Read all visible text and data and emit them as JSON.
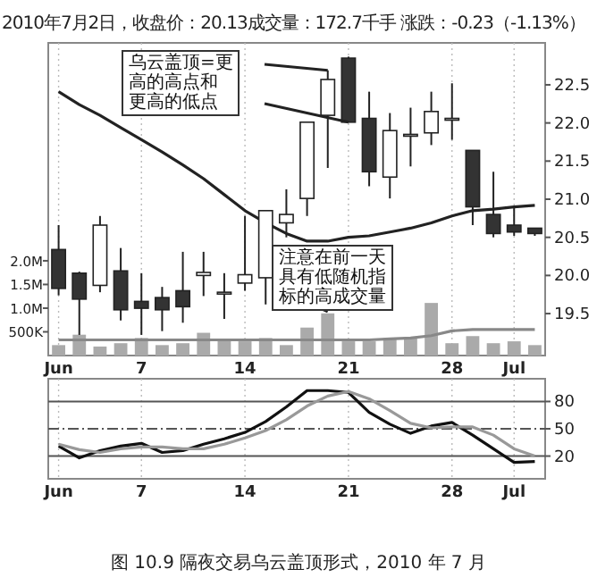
{
  "chart_data": [
    {
      "type": "candlestick",
      "title": "2010年7月2日，收盘价：20.13成交量：172.7千手 涨跌：-0.23（-1.13%）",
      "categories": [
        "Jun",
        null,
        null,
        null,
        "7",
        null,
        null,
        null,
        null,
        "14",
        null,
        null,
        null,
        null,
        "21",
        null,
        null,
        null,
        null,
        "28",
        null,
        null,
        "Jul",
        null
      ],
      "ohlc": [
        [
          20.34,
          20.66,
          19.74,
          19.83
        ],
        [
          20.03,
          20.05,
          19.22,
          19.69
        ],
        [
          19.87,
          20.78,
          19.78,
          20.66
        ],
        [
          20.06,
          20.36,
          19.41,
          19.55
        ],
        [
          19.66,
          20.03,
          19.22,
          19.57
        ],
        [
          19.71,
          19.85,
          19.27,
          19.55
        ],
        [
          19.8,
          20.31,
          19.38,
          19.59
        ],
        [
          20.0,
          20.31,
          19.73,
          20.04
        ],
        [
          19.78,
          20.03,
          19.43,
          19.78
        ],
        [
          19.9,
          20.78,
          19.8,
          20.01
        ],
        [
          19.97,
          20.85,
          19.62,
          20.85
        ],
        [
          20.69,
          21.13,
          20.5,
          20.8
        ],
        [
          21.01,
          22.01,
          20.78,
          22.01
        ],
        [
          22.1,
          22.69,
          21.41,
          22.57
        ],
        [
          22.85,
          22.87,
          22.01,
          22.01
        ],
        [
          22.06,
          22.41,
          21.17,
          21.36
        ],
        [
          21.29,
          22.13,
          21.01,
          21.9
        ],
        [
          21.85,
          22.2,
          21.43,
          21.85
        ],
        [
          21.87,
          22.41,
          21.71,
          22.15
        ],
        [
          22.06,
          22.52,
          21.78,
          22.06
        ],
        [
          21.64,
          21.64,
          20.66,
          20.9
        ],
        [
          20.8,
          21.36,
          20.5,
          20.55
        ],
        [
          20.66,
          20.9,
          20.52,
          20.57
        ],
        [
          20.62,
          20.62,
          20.52,
          20.55
        ]
      ],
      "series": [
        {
          "type": "line",
          "color": "#222222",
          "values": [
            22.41,
            22.24,
            22.1,
            21.94,
            21.78,
            21.62,
            21.45,
            21.27,
            21.06,
            20.85,
            20.69,
            20.55,
            20.45,
            20.45,
            20.5,
            20.52,
            20.57,
            20.62,
            20.69,
            20.78,
            20.85,
            20.87,
            20.9,
            20.92
          ]
        },
        {
          "type": "bar",
          "axis": "y2",
          "color": "#aaaaaa",
          "values": [
            220000,
            440000,
            190000,
            260000,
            370000,
            220000,
            260000,
            480000,
            330000,
            300000,
            370000,
            220000,
            590000,
            890000,
            300000,
            300000,
            370000,
            370000,
            1110000,
            260000,
            410000,
            260000,
            300000,
            220000
          ]
        },
        {
          "type": "line",
          "axis": "y2",
          "color": "#888888",
          "values": [
            330000,
            330000,
            330000,
            330000,
            330000,
            330000,
            330000,
            330000,
            330000,
            330000,
            330000,
            330000,
            330000,
            330000,
            330000,
            330000,
            350000,
            370000,
            420000,
            520000,
            550000,
            550000,
            550000,
            550000
          ]
        }
      ],
      "ylim": [
        18.95,
        23.05
      ],
      "yticks": [
        19.5,
        {
          "value": 20,
          "label": "20.0"
        },
        20.5,
        {
          "value": 21,
          "label": "21.0"
        },
        21.5,
        {
          "value": 22,
          "label": "22.0"
        },
        22.5
      ],
      "y2lim": [
        0,
        6600000
      ],
      "y2ticks": [
        {
          "value": 500000,
          "label": "500K"
        },
        {
          "value": 1000000,
          "label": "1.0M"
        },
        {
          "value": 1500000,
          "label": "1.5M"
        },
        {
          "value": 2000000,
          "label": "2.0M"
        }
      ],
      "grid": "x",
      "annotations": [
        "乌云盖顶=更高的高点和更高的低点",
        "注意在前一天具有低随机指标的高成交量"
      ]
    },
    {
      "type": "line",
      "categories": [
        "Jun",
        null,
        null,
        null,
        "7",
        null,
        null,
        null,
        null,
        "14",
        null,
        null,
        null,
        null,
        "21",
        null,
        null,
        null,
        null,
        "28",
        null,
        null,
        "Jul",
        null
      ],
      "series": [
        {
          "color": "#111111",
          "values": [
            31,
            18,
            26,
            31,
            34,
            24,
            26,
            33,
            39,
            46,
            58,
            74,
            92,
            92,
            90,
            68,
            55,
            45,
            53,
            57,
            43,
            28,
            13,
            14
          ]
        },
        {
          "color": "#999999",
          "values": [
            33,
            27,
            24,
            28,
            30,
            30,
            28,
            28,
            33,
            40,
            48,
            60,
            75,
            86,
            91,
            83,
            70,
            56,
            51,
            52,
            52,
            43,
            28,
            20
          ]
        }
      ],
      "ylim": [
        -5,
        105
      ],
      "yticks": [
        20,
        50,
        80
      ],
      "ref_lines": [
        {
          "axis": "y",
          "value": 80,
          "color": "#555555"
        },
        {
          "axis": "y",
          "value": 50,
          "color": "#555555",
          "line_style": "dashed"
        },
        {
          "axis": "y",
          "value": 20,
          "color": "#555555"
        }
      ],
      "grid": "x",
      "annotations": [
        "图 10.9 隔夜交易乌云盖顶形式，2010 年 7 月"
      ]
    }
  ]
}
